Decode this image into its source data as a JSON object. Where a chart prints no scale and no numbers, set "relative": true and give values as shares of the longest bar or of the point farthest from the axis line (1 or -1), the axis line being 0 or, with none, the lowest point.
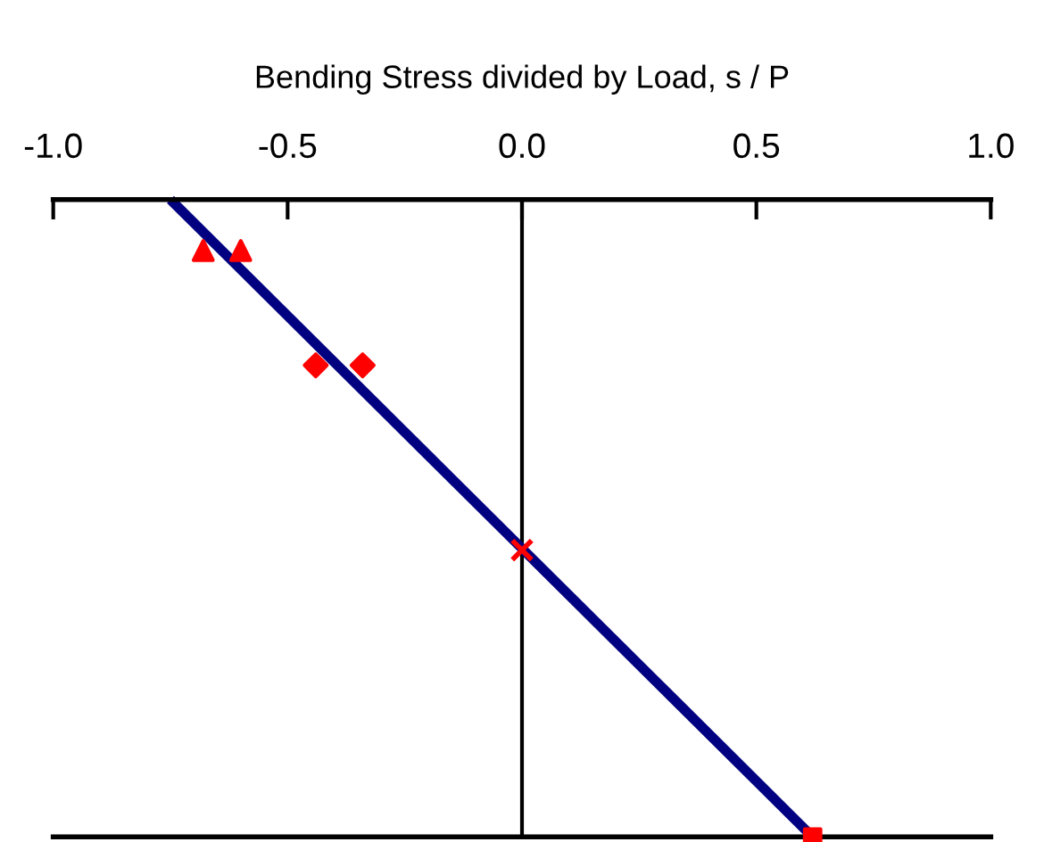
{
  "chart_data": {
    "type": "scatter",
    "relative": true,
    "xlabel": "Bending Stress divided by Load, s / P",
    "xlim": [
      -1.0,
      1.0
    ],
    "xticks": [
      {
        "value": -1.0,
        "label": "-1.0"
      },
      {
        "value": -0.5,
        "label": "-0.5"
      },
      {
        "value": 0.0,
        "label": "0.0"
      },
      {
        "value": 0.5,
        "label": "0.5"
      },
      {
        "value": 1.0,
        "label": "1.0"
      }
    ],
    "tick_labels": "x",
    "grid": false,
    "ref_lines": [
      {
        "axis": "x",
        "value": 0.0,
        "color": "#000000"
      }
    ],
    "series": [
      {
        "type": "line",
        "color": "#000080",
        "marker": "none",
        "x": [
          -0.75,
          0.62
        ],
        "values": [
          1,
          0
        ]
      },
      {
        "color": "#ff0000",
        "marker": "triangle",
        "x": [
          -0.68,
          -0.6
        ],
        "values": [
          0.92,
          0.92
        ]
      },
      {
        "color": "#ff0000",
        "marker": "diamond",
        "x": [
          -0.44,
          -0.34
        ],
        "values": [
          0.74,
          0.74
        ]
      },
      {
        "color": "#ff0000",
        "marker": "cross",
        "x": [
          0.0
        ],
        "values": [
          0.45
        ]
      },
      {
        "color": "#ff0000",
        "marker": "square",
        "x": [
          0.62
        ],
        "values": [
          0
        ]
      }
    ]
  }
}
